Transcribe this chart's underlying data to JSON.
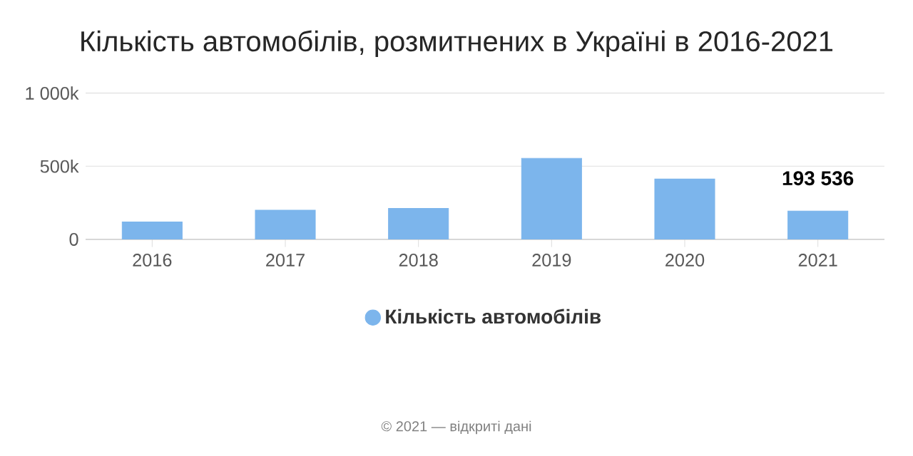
{
  "chart_data": {
    "type": "bar",
    "title": "Кількість автомобілів, розмитнених в Україні в 2016-2021",
    "categories": [
      "2016",
      "2017",
      "2018",
      "2019",
      "2020",
      "2021"
    ],
    "series": [
      {
        "name": "Кількість автомобілів",
        "color": "#7cb5ec",
        "values": [
          119000,
          200000,
          212000,
          554000,
          412000,
          193536
        ],
        "value_labels": [
          null,
          null,
          null,
          null,
          null,
          "193 536"
        ]
      }
    ],
    "ylim": [
      0,
      1000000
    ],
    "yticks": [
      {
        "value": 0,
        "label": "0"
      },
      {
        "value": 500000,
        "label": "500k"
      },
      {
        "value": 1000000,
        "label": "1 000k"
      }
    ],
    "grid": "y",
    "legend": "bottom",
    "annotations": [
      "© 2021 — відкриті дані"
    ]
  }
}
